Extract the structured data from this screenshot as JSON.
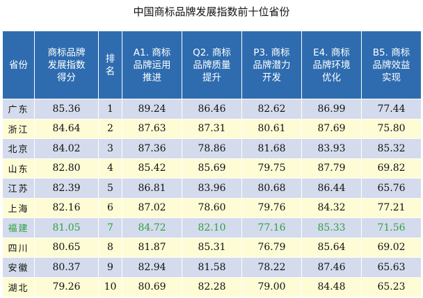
{
  "title": "中国商标品牌发展指数前十位省份",
  "columns": [
    [
      "省份"
    ],
    [
      "商标品牌",
      "发展指数",
      "得分"
    ],
    [
      "排",
      "名"
    ],
    [
      "A1. 商标",
      "品牌运用",
      "推进"
    ],
    [
      "Q2. 商标",
      "品牌质量",
      "提升"
    ],
    [
      "P3. 商标",
      "品牌潜力",
      "开发"
    ],
    [
      "E4. 商标",
      "品牌环境",
      "优化"
    ],
    [
      "B5. 商标",
      "品牌效益",
      "实现"
    ]
  ],
  "rows": [
    [
      "广东",
      "85.36",
      "1",
      "89.24",
      "86.46",
      "82.62",
      "86.99",
      "77.44"
    ],
    [
      "浙江",
      "84.64",
      "2",
      "87.63",
      "87.31",
      "80.61",
      "87.69",
      "75.80"
    ],
    [
      "北京",
      "84.02",
      "3",
      "87.36",
      "78.86",
      "81.68",
      "83.93",
      "85.32"
    ],
    [
      "山东",
      "82.80",
      "4",
      "85.42",
      "85.69",
      "79.75",
      "87.79",
      "69.82"
    ],
    [
      "江苏",
      "82.39",
      "5",
      "86.81",
      "83.96",
      "80.68",
      "86.44",
      "65.76"
    ],
    [
      "上海",
      "82.16",
      "6",
      "87.02",
      "78.60",
      "79.76",
      "84.32",
      "77.21"
    ],
    [
      "福建",
      "81.05",
      "7",
      "84.72",
      "82.10",
      "77.16",
      "85.33",
      "71.56"
    ],
    [
      "四川",
      "80.65",
      "8",
      "81.87",
      "85.31",
      "76.79",
      "85.64",
      "69.02"
    ],
    [
      "安徽",
      "80.37",
      "9",
      "82.94",
      "81.58",
      "78.22",
      "87.46",
      "65.63"
    ],
    [
      "湖北",
      "79.26",
      "10",
      "80.69",
      "82.28",
      "79.00",
      "84.48",
      "65.23"
    ]
  ],
  "colors": {
    "header_bg": "#2e6caf",
    "row_odd_bg": "#d4dbec",
    "row_even_bg": "#fdfcd5",
    "highlight_text": "#2ea043"
  },
  "highlight_row": 6
}
